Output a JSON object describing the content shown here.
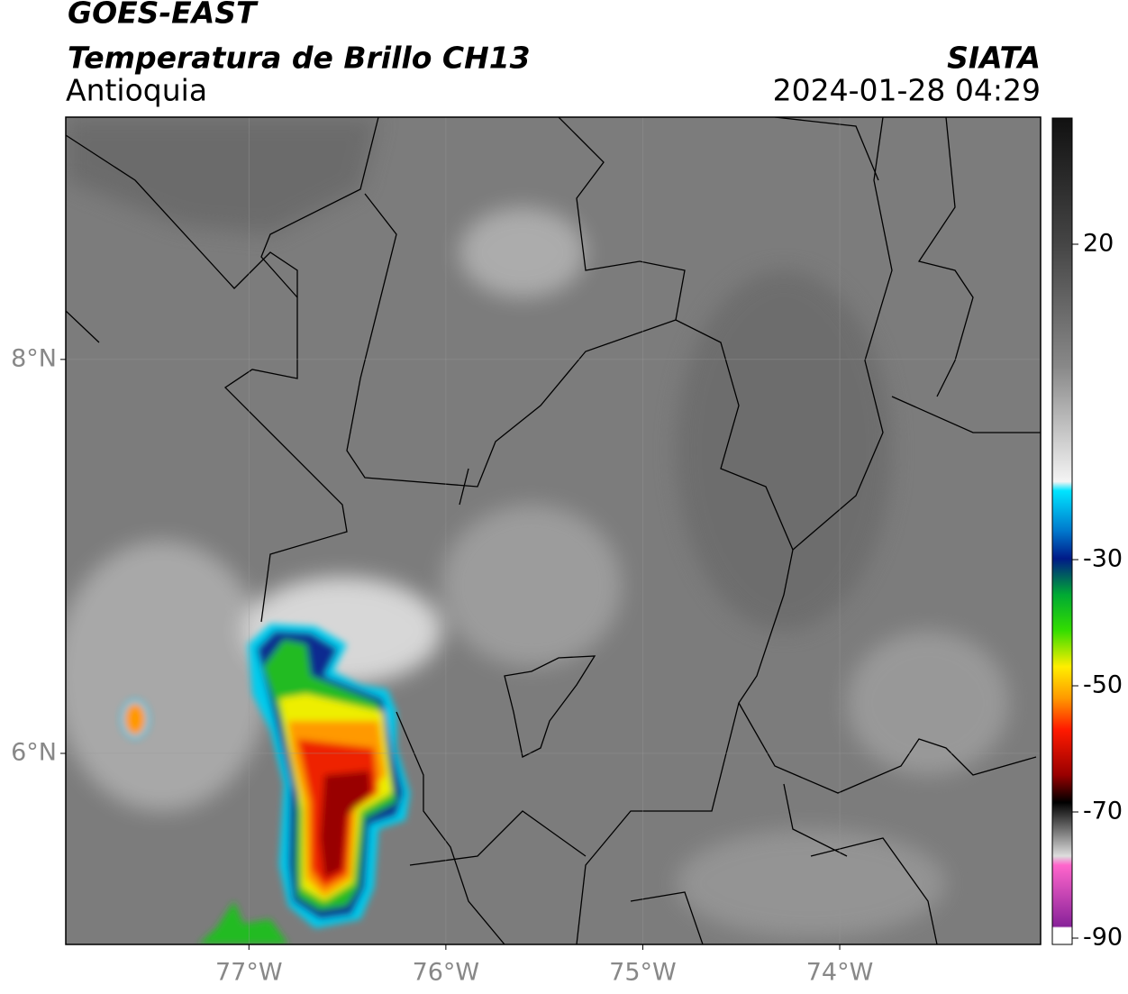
{
  "header": {
    "source": "GOES-EAST",
    "title": "Temperatura de Brillo CH13",
    "region": "Antioquia",
    "org": "SIATA",
    "datetime": "2024-01-28 04:29"
  },
  "map": {
    "xlim": [
      -77.93,
      -72.98
    ],
    "ylim": [
      5.03,
      9.23
    ],
    "xticks": [
      {
        "value": -77,
        "label": "77°W"
      },
      {
        "value": -76,
        "label": "76°W"
      },
      {
        "value": -75,
        "label": "75°W"
      },
      {
        "value": -74,
        "label": "74°W"
      }
    ],
    "yticks": [
      {
        "value": 6,
        "label": "6°N"
      },
      {
        "value": 8,
        "label": "8°N"
      }
    ],
    "grid": true
  },
  "colorbar": {
    "clim": [
      -91,
      40
    ],
    "ticks": [
      20,
      -30,
      -50,
      -70,
      -90
    ]
  }
}
